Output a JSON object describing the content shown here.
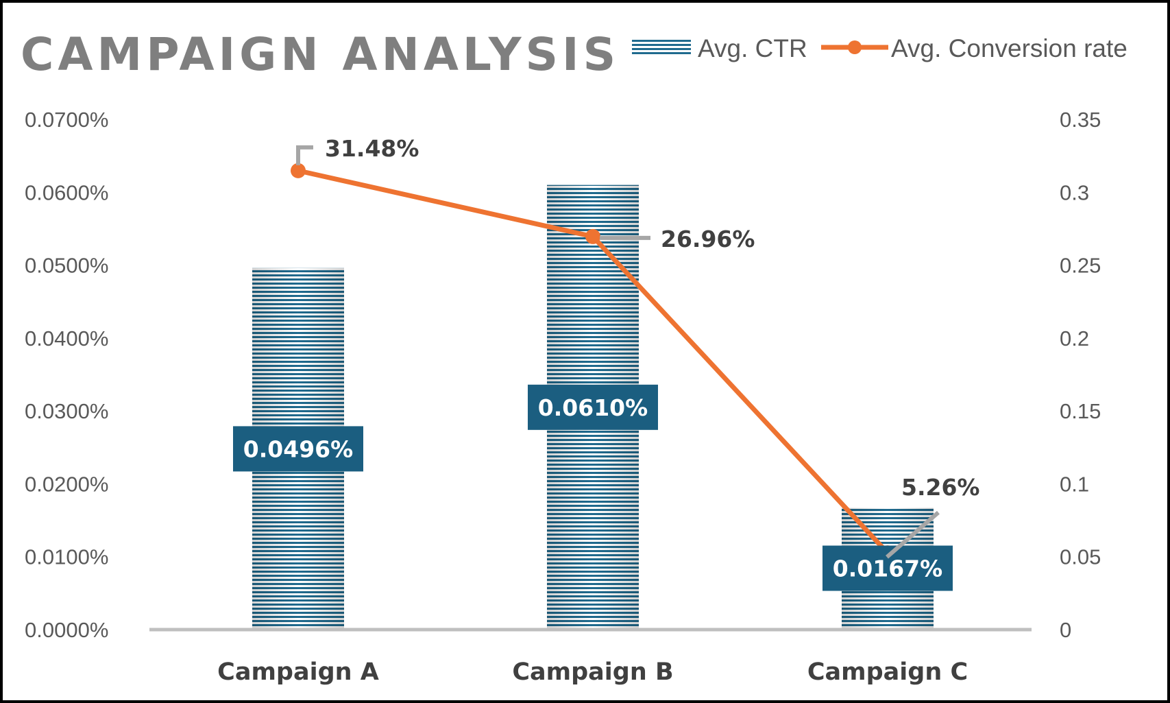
{
  "chart_data": {
    "type": "bar",
    "title": "CAMPAIGN ANALYSIS",
    "categories": [
      "Campaign A",
      "Campaign B",
      "Campaign C"
    ],
    "series": [
      {
        "name": "Avg. CTR",
        "type": "bar",
        "axis": "left",
        "values": [
          0.000496,
          0.00061,
          0.000167
        ],
        "labels": [
          "0.0496%",
          "0.0610%",
          "0.0167%"
        ]
      },
      {
        "name": "Avg. Conversion rate",
        "type": "line",
        "axis": "right",
        "values": [
          0.3148,
          0.2696,
          0.0526
        ],
        "labels": [
          "31.48%",
          "26.96%",
          "5.26%"
        ]
      }
    ],
    "y_left": {
      "range": [
        0,
        0.0007
      ],
      "ticks": [
        0,
        0.0001,
        0.0002,
        0.0003,
        0.0004,
        0.0005,
        0.0006,
        0.0007
      ],
      "tick_labels": [
        "0.0000%",
        "0.0100%",
        "0.0200%",
        "0.0300%",
        "0.0400%",
        "0.0500%",
        "0.0600%",
        "0.0700%"
      ]
    },
    "y_right": {
      "range": [
        0,
        0.35
      ],
      "ticks": [
        0,
        0.05,
        0.1,
        0.15,
        0.2,
        0.25,
        0.3,
        0.35
      ],
      "tick_labels": [
        "0",
        "0.05",
        "0.1",
        "0.15",
        "0.2",
        "0.25",
        "0.3",
        "0.35"
      ]
    },
    "grid": false,
    "legend": "top-right",
    "colors": {
      "bar": "#1f6a8e",
      "bar_stripe": "#ffffff",
      "bar_label_bg": "#1b5e80",
      "line": "#ee7331",
      "leader": "#a6a6a6",
      "axis": "#bfbfbf",
      "title": "#7f7f7f"
    }
  }
}
